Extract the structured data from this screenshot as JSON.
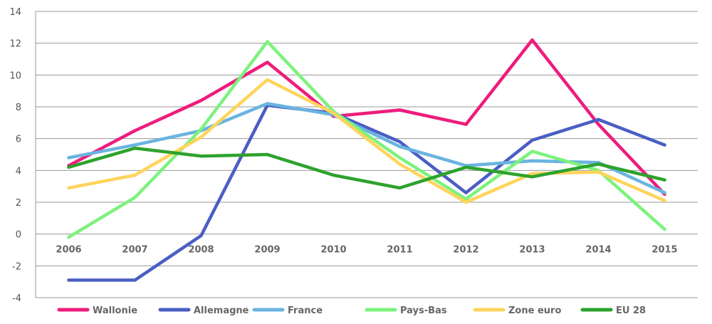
{
  "chart_data": {
    "type": "line",
    "title": "",
    "xlabel": "",
    "ylabel": "",
    "x": [
      "2006",
      "2007",
      "2008",
      "2009",
      "2010",
      "2011",
      "2012",
      "2013",
      "2014",
      "2015"
    ],
    "ylim": [
      -4,
      14
    ],
    "yticks": [
      "14",
      "12",
      "10",
      "8",
      "6",
      "4",
      "2",
      "0",
      "-2",
      "-4"
    ],
    "grid": true,
    "legend_position": "bottom",
    "series": [
      {
        "name": "Wallonie",
        "color": "#ee1c7c",
        "values": [
          4.3,
          6.5,
          8.4,
          10.8,
          7.4,
          7.8,
          6.9,
          12.2,
          6.9,
          2.5
        ]
      },
      {
        "name": "Allemagne",
        "color": "#4a5ec4",
        "values": [
          -2.9,
          -2.9,
          -0.1,
          8.1,
          7.6,
          5.8,
          2.6,
          5.9,
          7.2,
          5.6
        ]
      },
      {
        "name": "France",
        "color": "#6ab4e0",
        "values": [
          4.8,
          5.6,
          6.5,
          8.2,
          7.5,
          5.5,
          4.3,
          4.6,
          4.5,
          2.6
        ]
      },
      {
        "name": "Pays-Bas",
        "color": "#7df27d",
        "values": [
          -0.2,
          2.3,
          6.6,
          12.1,
          7.7,
          4.8,
          2.2,
          5.2,
          4.0,
          0.3
        ]
      },
      {
        "name": "Zone euro",
        "color": "#ffd45c",
        "values": [
          2.9,
          3.7,
          6.1,
          9.7,
          7.6,
          4.4,
          2.0,
          3.8,
          3.9,
          2.1
        ]
      },
      {
        "name": "EU 28",
        "color": "#2da22d",
        "values": [
          4.2,
          5.4,
          4.9,
          5.0,
          3.7,
          2.9,
          4.2,
          3.6,
          4.4,
          3.4
        ]
      }
    ]
  }
}
